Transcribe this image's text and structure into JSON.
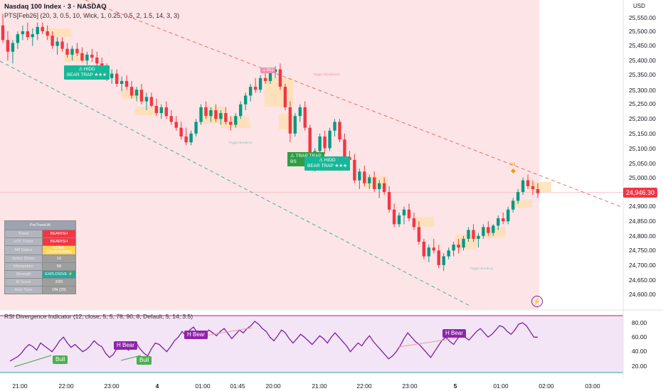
{
  "header": {
    "title": "Nasdaq 100 Index · 3 · NASDAQ",
    "indicator": "PTS[Feb26] (20, 3, 0.5, 10, Wick, 1, 0.25, 0.5, 2, 1.5, 14, 3, 3)"
  },
  "price_axis": {
    "currency": "USD",
    "labels": [
      "25,550.00",
      "25,500.00",
      "25,450.00",
      "25,400.00",
      "25,350.00",
      "25,300.00",
      "25,250.00",
      "25,200.00",
      "25,150.00",
      "25,100.00",
      "25,050.00",
      "25,000.00",
      "24,900.00",
      "24,850.00",
      "24,800.00",
      "24,750.00",
      "24,700.00",
      "24,650.00",
      "24,600.00"
    ],
    "current_price": "24,946.30"
  },
  "rsi_axis": {
    "labels": [
      "80.00",
      "60.00",
      "40.00",
      "20.00"
    ]
  },
  "time_axis": {
    "labels": [
      "21:00",
      "22:00",
      "23:00",
      "4",
      "01:00",
      "01:45",
      "20:00",
      "21:00",
      "22:00",
      "23:00",
      "5",
      "01:00",
      "02:00",
      "03:00"
    ]
  },
  "rsi": {
    "title": "RSI Divergence Indicator (12, close, 5, 5, 78, 90, 8, Default, 5, 14, 3.5)",
    "tags": {
      "bull1": "Bull",
      "bull2": "Bull",
      "hbear1": "H Bear",
      "hbear2": "H Bear",
      "hbear3": "H Bear"
    }
  },
  "annotations": {
    "trap1": "⚠ HIDD\nBEAR TRAP ★★★",
    "trap2": "⚠ TRAP TRAP\nBS",
    "trap3": "⚠ HIDD\nBEAR TRAP ★★★",
    "rej": "⚠ REJ",
    "trigger1": "Trigger Breakout",
    "trigger2": "Trigger Breakout",
    "trigger3": "Trigger Breakdown",
    "vol": "Vol"
  },
  "protrend": {
    "title": "ProTrend AI",
    "rows": [
      {
        "key": "Trend",
        "value": "BEARISH",
        "color": "#f23645"
      },
      {
        "key": "HTF Trend",
        "value": "BEARISH",
        "color": "#f23645"
      },
      {
        "key": "Mtf Status",
        "value": "LONG\nCOUNTERING",
        "color": "#ffd54f"
      },
      {
        "key": "Active Zones",
        "value": "10",
        "color": "#9e9e9e"
      },
      {
        "key": "Momentum",
        "value": "58",
        "color": "#9e9e9e"
      },
      {
        "key": "Strength",
        "value": "EXPLOSIVE ⚡",
        "color": "#26a69a"
      },
      {
        "key": "AI Score",
        "value": "2/20",
        "color": "#9e9e9e"
      },
      {
        "key": "Auto Tune",
        "value": "ON (20)",
        "color": "#9e9e9e"
      }
    ]
  },
  "colors": {
    "up": "#089981",
    "down": "#f23645",
    "bg_bear": "#fde4e6",
    "rsi_line": "#7b1fa2",
    "rsi_bg": "#f3e5f5"
  },
  "chart_data": {
    "type": "candlestick",
    "y_range": [
      24560,
      25600
    ],
    "candles": [
      [
        25520,
        25560,
        25460,
        25470
      ],
      [
        25470,
        25500,
        25400,
        25430
      ],
      [
        25430,
        25470,
        25390,
        25460
      ],
      [
        25460,
        25500,
        25440,
        25490
      ],
      [
        25490,
        25520,
        25470,
        25500
      ],
      [
        25500,
        25530,
        25470,
        25480
      ],
      [
        25480,
        25510,
        25450,
        25490
      ],
      [
        25490,
        25530,
        25470,
        25515
      ],
      [
        25515,
        25530,
        25490,
        25500
      ],
      [
        25500,
        25520,
        25470,
        25485
      ],
      [
        25485,
        25500,
        25440,
        25450
      ],
      [
        25450,
        25480,
        25420,
        25465
      ],
      [
        25465,
        25480,
        25430,
        25440
      ],
      [
        25440,
        25460,
        25410,
        25420
      ],
      [
        25420,
        25450,
        25400,
        25440
      ],
      [
        25440,
        25460,
        25415,
        25425
      ],
      [
        25425,
        25445,
        25395,
        25400
      ],
      [
        25400,
        25430,
        25385,
        25420
      ],
      [
        25420,
        25440,
        25395,
        25410
      ],
      [
        25410,
        25430,
        25380,
        25390
      ],
      [
        25390,
        25410,
        25360,
        25370
      ],
      [
        25370,
        25390,
        25330,
        25340
      ],
      [
        25340,
        25370,
        25320,
        25355
      ],
      [
        25355,
        25370,
        25310,
        25320
      ],
      [
        25320,
        25345,
        25295,
        25330
      ],
      [
        25330,
        25350,
        25300,
        25310
      ],
      [
        25310,
        25330,
        25270,
        25280
      ],
      [
        25280,
        25310,
        25260,
        25300
      ],
      [
        25300,
        25320,
        25250,
        25260
      ],
      [
        25260,
        25290,
        25230,
        25275
      ],
      [
        25275,
        25290,
        25240,
        25245
      ],
      [
        25245,
        25270,
        25210,
        25220
      ],
      [
        25220,
        25250,
        25200,
        25240
      ],
      [
        25240,
        25260,
        25200,
        25210
      ],
      [
        25210,
        25230,
        25180,
        25190
      ],
      [
        25190,
        25210,
        25160,
        25170
      ],
      [
        25170,
        25190,
        25130,
        25140
      ],
      [
        25140,
        25170,
        25110,
        25120
      ],
      [
        25120,
        25160,
        25110,
        25150
      ],
      [
        25150,
        25200,
        25140,
        25190
      ],
      [
        25190,
        25250,
        25180,
        25240
      ],
      [
        25240,
        25260,
        25200,
        25210
      ],
      [
        25210,
        25240,
        25190,
        25230
      ],
      [
        25230,
        25250,
        25190,
        25200
      ],
      [
        25200,
        25230,
        25180,
        25220
      ],
      [
        25220,
        25240,
        25180,
        25190
      ],
      [
        25190,
        25210,
        25160,
        25180
      ],
      [
        25180,
        25220,
        25170,
        25210
      ],
      [
        25210,
        25260,
        25200,
        25250
      ],
      [
        25250,
        25290,
        25230,
        25280
      ],
      [
        25280,
        25320,
        25260,
        25310
      ],
      [
        25310,
        25340,
        25290,
        25300
      ],
      [
        25300,
        25350,
        25290,
        25340
      ],
      [
        25340,
        25360,
        25320,
        25330
      ],
      [
        25330,
        25370,
        25320,
        25360
      ],
      [
        25360,
        25380,
        25340,
        25370
      ],
      [
        25370,
        25390,
        25300,
        25310
      ],
      [
        25310,
        25320,
        25230,
        25240
      ],
      [
        25240,
        25260,
        25120,
        25150
      ],
      [
        25150,
        25220,
        25140,
        25210
      ],
      [
        25210,
        25250,
        25190,
        25240
      ],
      [
        25240,
        25260,
        25160,
        25170
      ],
      [
        25170,
        25180,
        25050,
        25060
      ],
      [
        25060,
        25100,
        25020,
        25090
      ],
      [
        25090,
        25150,
        25080,
        25140
      ],
      [
        25140,
        25160,
        25080,
        25100
      ],
      [
        25100,
        25170,
        25090,
        25160
      ],
      [
        25160,
        25200,
        25140,
        25190
      ],
      [
        25190,
        25200,
        25120,
        25130
      ],
      [
        25130,
        25150,
        25060,
        25070
      ],
      [
        25070,
        25090,
        25030,
        25060
      ],
      [
        25060,
        25080,
        24980,
        24990
      ],
      [
        24990,
        25030,
        24960,
        25020
      ],
      [
        25020,
        25040,
        24970,
        24980
      ],
      [
        24980,
        25010,
        24960,
        25000
      ],
      [
        25000,
        25020,
        24950,
        24960
      ],
      [
        24960,
        24990,
        24930,
        24980
      ],
      [
        24980,
        25000,
        24940,
        24950
      ],
      [
        24950,
        24970,
        24880,
        24890
      ],
      [
        24890,
        24910,
        24830,
        24840
      ],
      [
        24840,
        24880,
        24830,
        24870
      ],
      [
        24870,
        24900,
        24840,
        24890
      ],
      [
        24890,
        24910,
        24850,
        24860
      ],
      [
        24860,
        24880,
        24820,
        24830
      ],
      [
        24830,
        24850,
        24770,
        24780
      ],
      [
        24780,
        24790,
        24720,
        24730
      ],
      [
        24730,
        24770,
        24710,
        24760
      ],
      [
        24760,
        24790,
        24740,
        24750
      ],
      [
        24750,
        24770,
        24690,
        24700
      ],
      [
        24700,
        24740,
        24680,
        24730
      ],
      [
        24730,
        24760,
        24720,
        24750
      ],
      [
        24750,
        24780,
        24730,
        24770
      ],
      [
        24770,
        24790,
        24740,
        24760
      ],
      [
        24760,
        24800,
        24750,
        24790
      ],
      [
        24790,
        24830,
        24780,
        24820
      ],
      [
        24820,
        24840,
        24780,
        24790
      ],
      [
        24790,
        24810,
        24760,
        24800
      ],
      [
        24800,
        24840,
        24790,
        24830
      ],
      [
        24830,
        24850,
        24800,
        24810
      ],
      [
        24810,
        24840,
        24800,
        24835
      ],
      [
        24835,
        24870,
        24820,
        24860
      ],
      [
        24860,
        24880,
        24840,
        24850
      ],
      [
        24850,
        24900,
        24840,
        24890
      ],
      [
        24890,
        24930,
        24880,
        24920
      ],
      [
        24920,
        24960,
        24910,
        24950
      ],
      [
        24950,
        25000,
        24940,
        24990
      ],
      [
        24990,
        25010,
        24960,
        24970
      ],
      [
        24970,
        24990,
        24940,
        24960
      ],
      [
        24960,
        24980,
        24930,
        24946
      ]
    ]
  }
}
